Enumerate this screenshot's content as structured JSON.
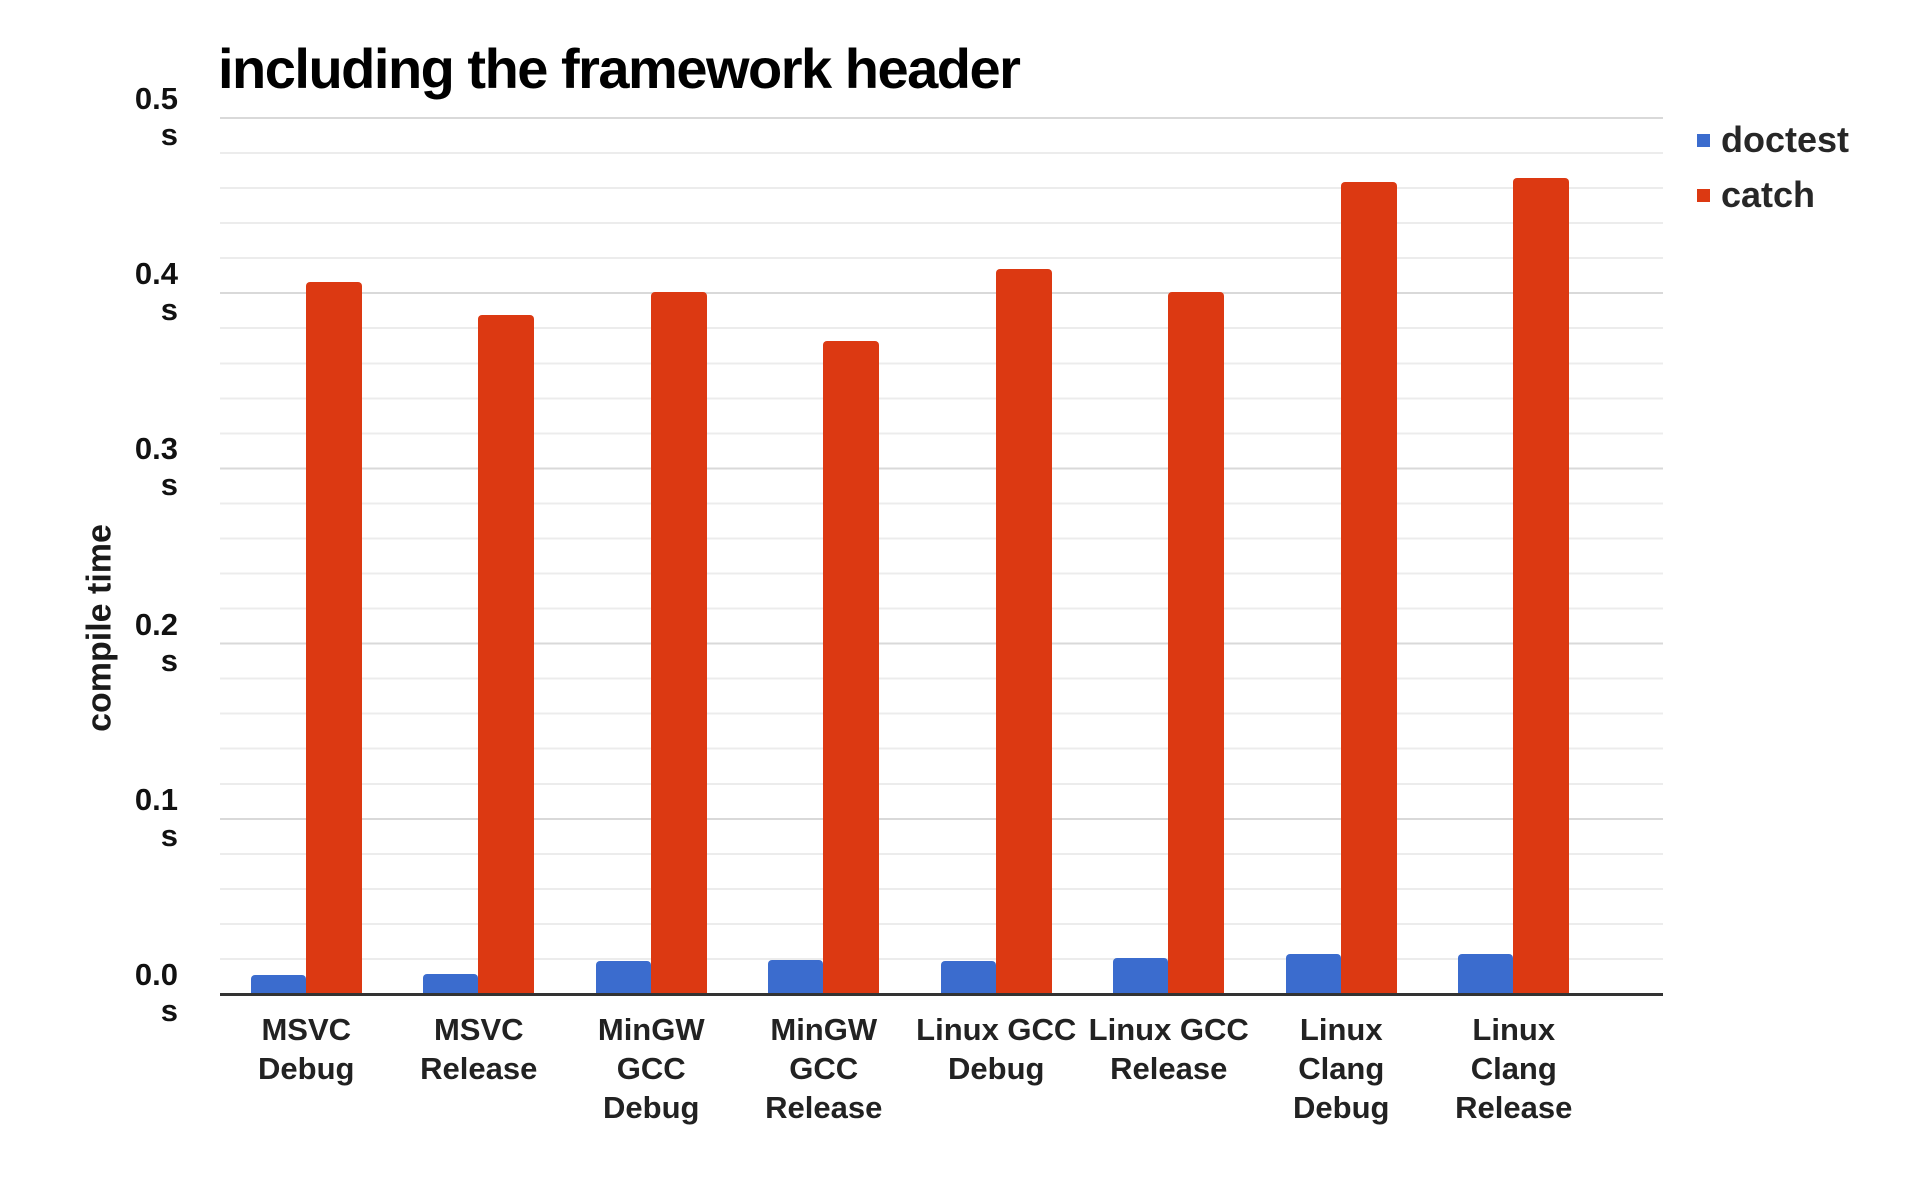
{
  "chart_data": {
    "type": "bar",
    "title": "including the framework header",
    "ylabel": "compile time",
    "unit": "s",
    "categories": [
      "MSVC Debug",
      "MSVC Release",
      "MinGW GCC Debug",
      "MinGW GCC Release",
      "Linux GCC Debug",
      "Linux GCC Release",
      "Linux Clang Debug",
      "Linux Clang Release"
    ],
    "category_lines": [
      [
        "MSVC",
        "Debug"
      ],
      [
        "MSVC",
        "Release"
      ],
      [
        "MinGW GCC",
        "Debug"
      ],
      [
        "MinGW GCC",
        "Release"
      ],
      [
        "Linux GCC",
        "Debug"
      ],
      [
        "Linux GCC",
        "Release"
      ],
      [
        "Linux Clang",
        "Debug"
      ],
      [
        "Linux Clang",
        "Release"
      ]
    ],
    "series": [
      {
        "name": "doctest",
        "color": "#3b6cce",
        "values": [
          0.01,
          0.011,
          0.018,
          0.019,
          0.018,
          0.02,
          0.022,
          0.022
        ]
      },
      {
        "name": "catch",
        "color": "#dc3912",
        "values": [
          0.406,
          0.387,
          0.4,
          0.372,
          0.413,
          0.4,
          0.463,
          0.465
        ]
      }
    ],
    "ylim": [
      0,
      0.5
    ],
    "yticks": [
      "0.5",
      "0.4",
      "0.3",
      "0.2",
      "0.1",
      "0.0"
    ],
    "ytick_unit": "s",
    "ytick_step": 0.1,
    "minor_gridline_step": 0.02,
    "grid": true,
    "legend_position": "right"
  },
  "legend": [
    {
      "label": "doctest"
    },
    {
      "label": "catch"
    }
  ]
}
